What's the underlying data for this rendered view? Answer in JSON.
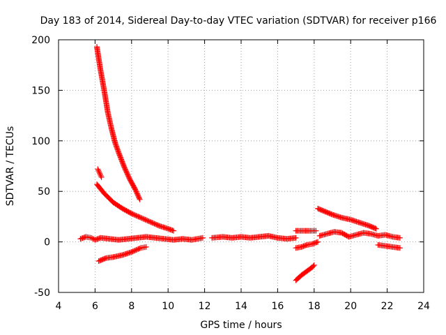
{
  "chart_data": {
    "type": "scatter",
    "title": "Day 183 of 2014, Sidereal Day-to-day VTEC variation (SDTVAR) for receiver p166",
    "xlabel": "GPS time / hours",
    "ylabel": "SDTVAR / TECUs",
    "xlim": [
      4,
      24
    ],
    "ylim": [
      -50,
      200
    ],
    "xticks": [
      4,
      6,
      8,
      10,
      12,
      14,
      16,
      18,
      20,
      22,
      24
    ],
    "yticks": [
      -50,
      0,
      50,
      100,
      150,
      200
    ],
    "grid": true,
    "marker": "+",
    "color": "#ff0000",
    "series": [
      {
        "name": "arc-steep-decay",
        "x": [
          6.1,
          6.3,
          6.5,
          6.7,
          6.9,
          7.1,
          7.3,
          7.6,
          7.9,
          8.2,
          8.45
        ],
        "y": [
          193,
          170,
          150,
          128,
          112,
          98,
          88,
          74,
          62,
          52,
          42
        ]
      },
      {
        "name": "arc-short-high",
        "x": [
          6.15,
          6.25,
          6.35
        ],
        "y": [
          72,
          68,
          64
        ]
      },
      {
        "name": "arc-slow-decay",
        "x": [
          6.1,
          6.5,
          7.0,
          7.5,
          8.0,
          8.5,
          9.0,
          9.5,
          10.0,
          10.3
        ],
        "y": [
          57,
          48,
          39,
          33,
          28,
          24,
          20,
          16,
          13,
          11
        ]
      },
      {
        "name": "arc-negative-rise",
        "x": [
          6.2,
          6.6,
          7.0,
          7.5,
          8.0,
          8.5,
          8.8
        ],
        "y": [
          -19,
          -16,
          -15,
          -13,
          -10,
          -6,
          -5
        ]
      },
      {
        "name": "near-zero-early",
        "x": [
          5.2,
          5.5,
          5.8,
          6.0,
          6.3,
          6.8,
          7.3,
          7.8,
          8.3,
          8.8,
          9.3,
          9.8,
          10.3,
          10.8,
          11.3,
          11.9
        ],
        "y": [
          3,
          5,
          4,
          2,
          4,
          3,
          2,
          3,
          4,
          5,
          4,
          3,
          2,
          3,
          2,
          4
        ]
      },
      {
        "name": "near-zero-mid",
        "x": [
          12.4,
          13.0,
          13.5,
          14.0,
          14.5,
          15.0,
          15.5,
          16.0,
          16.5,
          17.0
        ],
        "y": [
          4,
          5,
          4,
          5,
          4,
          5,
          6,
          4,
          3,
          4
        ]
      },
      {
        "name": "arc-negative-late",
        "x": [
          17.0,
          17.3,
          17.6,
          17.9,
          18.0
        ],
        "y": [
          -38,
          -33,
          -29,
          -25,
          -23
        ]
      },
      {
        "name": "arc-17-19-high",
        "x": [
          17.0,
          17.4,
          17.8,
          18.1
        ],
        "y": [
          11,
          11,
          11,
          11
        ]
      },
      {
        "name": "arc-17-19-low",
        "x": [
          17.0,
          17.3,
          17.6,
          17.9,
          18.2
        ],
        "y": [
          -6,
          -5,
          -3,
          -2,
          0
        ]
      },
      {
        "name": "arc-late-decay",
        "x": [
          18.2,
          18.6,
          19.0,
          19.5,
          20.0,
          20.5,
          21.0,
          21.4
        ],
        "y": [
          33,
          30,
          27,
          24,
          22,
          19,
          16,
          13
        ]
      },
      {
        "name": "cluster-late",
        "x": [
          18.3,
          18.7,
          19.1,
          19.5,
          19.9,
          20.3,
          20.7,
          21.1,
          21.5,
          21.9,
          22.3,
          22.7
        ],
        "y": [
          6,
          8,
          10,
          9,
          5,
          7,
          9,
          8,
          6,
          7,
          5,
          4
        ]
      },
      {
        "name": "arc-late-negative",
        "x": [
          21.5,
          21.9,
          22.3,
          22.7
        ],
        "y": [
          -3,
          -4,
          -5,
          -6
        ]
      }
    ]
  }
}
